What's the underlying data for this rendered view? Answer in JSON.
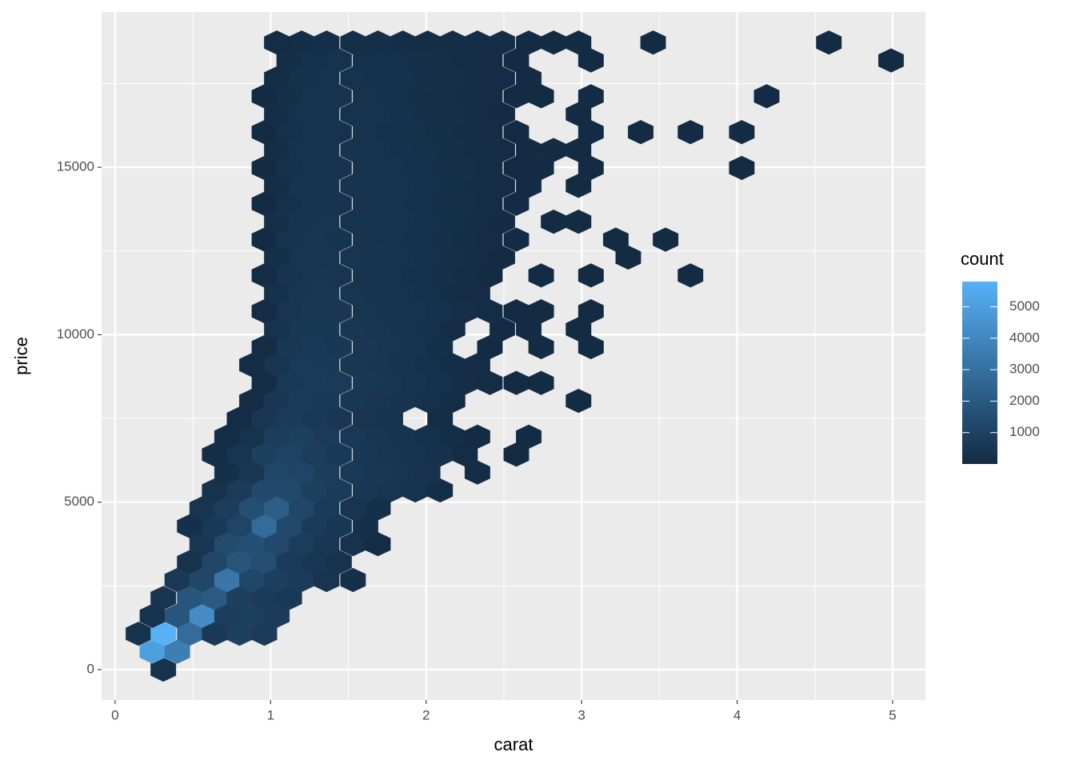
{
  "chart_data": {
    "type": "hexbin",
    "x_label": "carat",
    "y_label": "price",
    "legend_title": "count",
    "xlim": [
      -0.087,
      5.211
    ],
    "ylim": [
      -908,
      19637
    ],
    "xticks": [
      0,
      1,
      2,
      3,
      4,
      5
    ],
    "yticks": [
      0,
      5000,
      10000,
      15000
    ],
    "xminor": [
      0.5,
      1.5,
      2.5,
      3.5,
      4.5
    ],
    "yminor": [
      2500,
      7500,
      12500,
      17500
    ],
    "grid": true,
    "clim": [
      1,
      5800
    ],
    "cticks": [
      1000,
      2000,
      3000,
      4000,
      5000
    ],
    "color_low": "#132B43",
    "color_high": "#56B1F7",
    "rows": [
      {
        "y": 0,
        "x": [
          0.31
        ],
        "values": [
          300
        ]
      },
      {
        "y": 535,
        "x": [
          0.24,
          0.4
        ],
        "values": [
          5000,
          3600
        ]
      },
      {
        "y": 1070,
        "x": [
          0.15,
          0.31,
          0.48,
          0.64,
          0.8,
          0.96
        ],
        "values": [
          300,
          5800,
          2800,
          600,
          900,
          700
        ]
      },
      {
        "y": 1605,
        "x": [
          0.24,
          0.4,
          0.56,
          0.72,
          0.88,
          1.04
        ],
        "values": [
          300,
          1800,
          4200,
          800,
          900,
          700
        ]
      },
      {
        "y": 2140,
        "x": [
          0.31,
          0.48,
          0.64,
          0.8,
          0.96,
          1.12
        ],
        "values": [
          400,
          1800,
          2000,
          900,
          700,
          600
        ]
      },
      {
        "y": 2675,
        "x": [
          0.4,
          0.56,
          0.72,
          0.88,
          1.04,
          1.2,
          1.36,
          1.53
        ],
        "values": [
          600,
          1200,
          3300,
          1200,
          900,
          700,
          400,
          200
        ]
      },
      {
        "y": 3210,
        "x": [
          0.48,
          0.64,
          0.8,
          0.96,
          1.12,
          1.28,
          1.44
        ],
        "values": [
          300,
          1200,
          1800,
          1500,
          700,
          500,
          300
        ]
      },
      {
        "y": 3745,
        "x": [
          0.56,
          0.72,
          0.88,
          1.04,
          1.2,
          1.36,
          1.53,
          1.69
        ],
        "values": [
          500,
          1400,
          1600,
          1300,
          800,
          500,
          300,
          100
        ]
      },
      {
        "y": 4280,
        "x": [
          0.48,
          0.64,
          0.8,
          0.96,
          1.12,
          1.28,
          1.44,
          1.61
        ],
        "values": [
          200,
          600,
          1100,
          2800,
          1300,
          700,
          500,
          200
        ]
      },
      {
        "y": 4815,
        "x": [
          0.56,
          0.72,
          0.88,
          1.04,
          1.2,
          1.36,
          1.53,
          1.69
        ],
        "values": [
          400,
          800,
          1500,
          2200,
          1200,
          700,
          400,
          200
        ]
      },
      {
        "y": 5350,
        "x": [
          0.64,
          0.8,
          0.96,
          1.12,
          1.28,
          1.44,
          1.61,
          1.77,
          1.93,
          2.09
        ],
        "values": [
          300,
          700,
          1300,
          1300,
          900,
          700,
          500,
          400,
          300,
          150
        ]
      },
      {
        "y": 5885,
        "x": [
          0.72,
          0.88,
          1.04,
          1.2,
          1.36,
          1.53,
          1.69,
          1.85,
          2.01,
          2.33
        ],
        "values": [
          200,
          500,
          1200,
          1100,
          800,
          600,
          500,
          400,
          300,
          60
        ]
      },
      {
        "y": 6420,
        "x": [
          0.64,
          0.8,
          0.96,
          1.12,
          1.28,
          1.44,
          1.61,
          1.77,
          1.93,
          2.09,
          2.25,
          2.58
        ],
        "values": [
          150,
          400,
          900,
          1000,
          800,
          600,
          500,
          400,
          300,
          250,
          80,
          10
        ]
      },
      {
        "y": 6955,
        "x": [
          0.72,
          0.88,
          1.04,
          1.2,
          1.36,
          1.53,
          1.69,
          1.85,
          2.01,
          2.17,
          2.33,
          2.66
        ],
        "values": [
          100,
          300,
          800,
          900,
          700,
          600,
          450,
          350,
          250,
          150,
          40,
          8
        ]
      },
      {
        "y": 7490,
        "x": [
          0.8,
          0.96,
          1.12,
          1.28,
          1.44,
          1.61,
          1.77,
          2.09
        ],
        "values": [
          100,
          500,
          700,
          600,
          500,
          400,
          300,
          100
        ]
      },
      {
        "y": 8025,
        "x": [
          0.88,
          1.04,
          1.2,
          1.36,
          1.53,
          1.69,
          1.85,
          2.01,
          2.17,
          2.98
        ],
        "values": [
          80,
          500,
          700,
          600,
          500,
          400,
          350,
          250,
          100,
          5
        ]
      },
      {
        "y": 8560,
        "x": [
          0.96,
          1.12,
          1.28,
          1.44,
          1.61,
          1.77,
          1.93,
          2.09,
          2.25,
          2.41,
          2.58,
          2.74
        ],
        "values": [
          100,
          600,
          700,
          650,
          550,
          450,
          350,
          250,
          150,
          80,
          30,
          10
        ]
      },
      {
        "y": 9095,
        "x": [
          0.88,
          1.04,
          1.2,
          1.36,
          1.53,
          1.69,
          1.85,
          2.01,
          2.17,
          2.33
        ],
        "values": [
          60,
          400,
          650,
          600,
          500,
          450,
          350,
          250,
          150,
          60
        ]
      },
      {
        "y": 9630,
        "x": [
          0.96,
          1.12,
          1.28,
          1.44,
          1.61,
          1.77,
          1.93,
          2.09,
          2.41,
          2.74,
          3.06
        ],
        "values": [
          80,
          500,
          600,
          550,
          500,
          400,
          300,
          200,
          30,
          8,
          10
        ]
      },
      {
        "y": 10165,
        "x": [
          1.04,
          1.2,
          1.36,
          1.53,
          1.69,
          1.85,
          2.01,
          2.17,
          2.49,
          2.66,
          2.98
        ],
        "values": [
          300,
          550,
          550,
          500,
          400,
          350,
          250,
          60,
          20,
          15,
          8
        ]
      },
      {
        "y": 10700,
        "x": [
          0.96,
          1.12,
          1.28,
          1.44,
          1.61,
          1.77,
          1.93,
          2.09,
          2.25,
          2.41,
          2.58,
          2.74,
          3.06
        ],
        "values": [
          60,
          400,
          500,
          480,
          420,
          380,
          320,
          250,
          180,
          100,
          40,
          15,
          12
        ]
      },
      {
        "y": 11235,
        "x": [
          1.04,
          1.2,
          1.36,
          1.53,
          1.69,
          1.85,
          2.01,
          2.17,
          2.33
        ],
        "values": [
          250,
          450,
          480,
          420,
          380,
          320,
          250,
          150,
          50
        ]
      },
      {
        "y": 11770,
        "x": [
          0.96,
          1.12,
          1.28,
          1.44,
          1.61,
          1.77,
          1.93,
          2.09,
          2.25,
          2.41,
          2.74,
          3.06,
          3.7
        ],
        "values": [
          50,
          350,
          450,
          420,
          380,
          330,
          280,
          220,
          120,
          40,
          8,
          10,
          3
        ]
      },
      {
        "y": 12305,
        "x": [
          1.04,
          1.2,
          1.36,
          1.53,
          1.69,
          1.85,
          2.01,
          2.17,
          2.33,
          2.49,
          3.3
        ],
        "values": [
          200,
          420,
          430,
          400,
          350,
          300,
          250,
          180,
          90,
          30,
          5
        ]
      },
      {
        "y": 12840,
        "x": [
          0.96,
          1.12,
          1.28,
          1.44,
          1.61,
          1.77,
          1.93,
          2.09,
          2.25,
          2.41,
          2.58,
          3.22,
          3.54
        ],
        "values": [
          40,
          300,
          400,
          380,
          350,
          320,
          280,
          230,
          150,
          80,
          20,
          4,
          3
        ]
      },
      {
        "y": 13375,
        "x": [
          1.04,
          1.2,
          1.36,
          1.53,
          1.69,
          1.85,
          2.01,
          2.17,
          2.33,
          2.49,
          2.82,
          2.98
        ],
        "values": [
          180,
          380,
          400,
          370,
          330,
          300,
          260,
          200,
          120,
          40,
          8,
          6
        ]
      },
      {
        "y": 13910,
        "x": [
          0.96,
          1.12,
          1.28,
          1.44,
          1.61,
          1.77,
          1.93,
          2.09,
          2.25,
          2.41,
          2.58
        ],
        "values": [
          30,
          280,
          380,
          360,
          330,
          300,
          270,
          220,
          160,
          90,
          20
        ]
      },
      {
        "y": 14445,
        "x": [
          1.04,
          1.2,
          1.36,
          1.53,
          1.69,
          1.85,
          2.01,
          2.17,
          2.33,
          2.49,
          2.66,
          2.98
        ],
        "values": [
          150,
          350,
          370,
          350,
          320,
          290,
          260,
          210,
          140,
          60,
          15,
          8
        ]
      },
      {
        "y": 14980,
        "x": [
          0.96,
          1.12,
          1.28,
          1.44,
          1.61,
          1.77,
          1.93,
          2.09,
          2.25,
          2.41,
          2.58,
          2.74,
          3.06,
          4.03
        ],
        "values": [
          40,
          260,
          350,
          340,
          320,
          290,
          260,
          220,
          160,
          90,
          30,
          8,
          10,
          3
        ]
      },
      {
        "y": 15515,
        "x": [
          1.04,
          1.2,
          1.36,
          1.53,
          1.69,
          1.85,
          2.01,
          2.17,
          2.33,
          2.49,
          2.66,
          2.82,
          2.98
        ],
        "values": [
          130,
          320,
          350,
          330,
          300,
          270,
          240,
          190,
          120,
          50,
          15,
          8,
          6
        ]
      },
      {
        "y": 16050,
        "x": [
          0.96,
          1.12,
          1.28,
          1.44,
          1.61,
          1.77,
          1.93,
          2.09,
          2.25,
          2.41,
          2.58,
          3.06,
          3.38,
          3.7,
          4.03
        ],
        "values": [
          30,
          250,
          330,
          320,
          300,
          270,
          240,
          200,
          130,
          60,
          15,
          12,
          4,
          3,
          3
        ]
      },
      {
        "y": 16585,
        "x": [
          1.04,
          1.2,
          1.36,
          1.53,
          1.69,
          1.85,
          2.01,
          2.17,
          2.33,
          2.49,
          2.98
        ],
        "values": [
          120,
          300,
          330,
          310,
          290,
          260,
          220,
          170,
          100,
          30,
          6
        ]
      },
      {
        "y": 17120,
        "x": [
          0.96,
          1.12,
          1.28,
          1.44,
          1.61,
          1.77,
          1.93,
          2.09,
          2.25,
          2.41,
          2.58,
          2.74,
          3.06,
          4.19
        ],
        "values": [
          30,
          230,
          320,
          310,
          290,
          260,
          230,
          190,
          130,
          70,
          25,
          8,
          10,
          3
        ]
      },
      {
        "y": 17655,
        "x": [
          1.04,
          1.2,
          1.36,
          1.53,
          1.69,
          1.85,
          2.01,
          2.17,
          2.33,
          2.49,
          2.66
        ],
        "values": [
          100,
          280,
          320,
          300,
          280,
          250,
          220,
          180,
          120,
          50,
          10
        ]
      },
      {
        "y": 18190,
        "x": [
          1.12,
          1.28,
          1.44,
          1.61,
          1.77,
          1.93,
          2.09,
          2.25,
          2.41,
          2.58,
          3.06,
          4.99
        ],
        "values": [
          150,
          280,
          290,
          270,
          250,
          220,
          190,
          140,
          80,
          20,
          15,
          3
        ]
      },
      {
        "y": 18725,
        "x": [
          1.04,
          1.2,
          1.36,
          1.53,
          1.69,
          1.85,
          2.01,
          2.17,
          2.33,
          2.49,
          2.66,
          2.82,
          2.98,
          3.46,
          4.59
        ],
        "values": [
          60,
          150,
          180,
          170,
          160,
          150,
          140,
          120,
          90,
          50,
          20,
          10,
          8,
          4,
          3
        ]
      }
    ]
  }
}
